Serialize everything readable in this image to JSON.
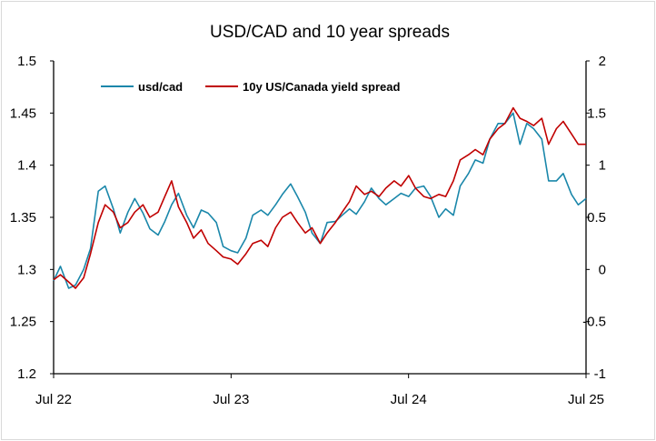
{
  "chart_data": {
    "type": "line",
    "title": "USD/CAD and 10 year spreads",
    "xlabel": "",
    "ylabel": "",
    "x_tick_labels": [
      "Jul 22",
      "Jul 23",
      "Jul 24",
      "Jul 25"
    ],
    "x_range": [
      "2022-07-01",
      "2025-07-01"
    ],
    "y_left": {
      "ticks": [
        "1.2",
        "1.25",
        "1.3",
        "1.35",
        "1.4",
        "1.45",
        "1.5"
      ],
      "ylim": [
        1.2,
        1.5
      ]
    },
    "y_right": {
      "ticks": [
        "-1",
        "-0.5",
        "0",
        "0.5",
        "1",
        "1.5",
        "2"
      ],
      "ylim": [
        -1,
        2
      ]
    },
    "grid": false,
    "legend_position": "top-left",
    "series": [
      {
        "name": "usd/cad",
        "axis": "left",
        "color": "#1a87aa",
        "points": [
          [
            "2022-07-01",
            1.289
          ],
          [
            "2022-07-15",
            1.303
          ],
          [
            "2022-08-01",
            1.282
          ],
          [
            "2022-08-15",
            1.285
          ],
          [
            "2022-09-01",
            1.3
          ],
          [
            "2022-09-15",
            1.32
          ],
          [
            "2022-10-01",
            1.375
          ],
          [
            "2022-10-15",
            1.38
          ],
          [
            "2022-11-01",
            1.358
          ],
          [
            "2022-11-15",
            1.335
          ],
          [
            "2022-12-01",
            1.355
          ],
          [
            "2022-12-15",
            1.368
          ],
          [
            "2023-01-01",
            1.354
          ],
          [
            "2023-01-15",
            1.339
          ],
          [
            "2023-02-01",
            1.333
          ],
          [
            "2023-02-15",
            1.346
          ],
          [
            "2023-03-01",
            1.362
          ],
          [
            "2023-03-15",
            1.373
          ],
          [
            "2023-04-01",
            1.352
          ],
          [
            "2023-04-15",
            1.34
          ],
          [
            "2023-05-01",
            1.357
          ],
          [
            "2023-05-15",
            1.354
          ],
          [
            "2023-06-01",
            1.345
          ],
          [
            "2023-06-15",
            1.322
          ],
          [
            "2023-07-01",
            1.318
          ],
          [
            "2023-07-15",
            1.316
          ],
          [
            "2023-08-01",
            1.33
          ],
          [
            "2023-08-15",
            1.352
          ],
          [
            "2023-09-01",
            1.357
          ],
          [
            "2023-09-15",
            1.352
          ],
          [
            "2023-10-01",
            1.362
          ],
          [
            "2023-10-15",
            1.372
          ],
          [
            "2023-11-01",
            1.382
          ],
          [
            "2023-11-15",
            1.37
          ],
          [
            "2023-12-01",
            1.355
          ],
          [
            "2023-12-15",
            1.335
          ],
          [
            "2024-01-01",
            1.325
          ],
          [
            "2024-01-15",
            1.345
          ],
          [
            "2024-02-01",
            1.346
          ],
          [
            "2024-02-15",
            1.352
          ],
          [
            "2024-03-01",
            1.358
          ],
          [
            "2024-03-15",
            1.353
          ],
          [
            "2024-04-01",
            1.365
          ],
          [
            "2024-04-15",
            1.378
          ],
          [
            "2024-05-01",
            1.368
          ],
          [
            "2024-05-15",
            1.362
          ],
          [
            "2024-06-01",
            1.368
          ],
          [
            "2024-06-15",
            1.373
          ],
          [
            "2024-07-01",
            1.37
          ],
          [
            "2024-07-15",
            1.378
          ],
          [
            "2024-08-01",
            1.38
          ],
          [
            "2024-08-15",
            1.37
          ],
          [
            "2024-09-01",
            1.35
          ],
          [
            "2024-09-15",
            1.358
          ],
          [
            "2024-10-01",
            1.352
          ],
          [
            "2024-10-15",
            1.38
          ],
          [
            "2024-11-01",
            1.392
          ],
          [
            "2024-11-15",
            1.405
          ],
          [
            "2024-12-01",
            1.402
          ],
          [
            "2024-12-15",
            1.425
          ],
          [
            "2025-01-01",
            1.44
          ],
          [
            "2025-01-15",
            1.44
          ],
          [
            "2025-02-01",
            1.45
          ],
          [
            "2025-02-15",
            1.42
          ],
          [
            "2025-03-01",
            1.44
          ],
          [
            "2025-03-15",
            1.435
          ],
          [
            "2025-04-01",
            1.425
          ],
          [
            "2025-04-15",
            1.385
          ],
          [
            "2025-05-01",
            1.385
          ],
          [
            "2025-05-15",
            1.392
          ],
          [
            "2025-06-01",
            1.372
          ],
          [
            "2025-06-15",
            1.362
          ],
          [
            "2025-07-01",
            1.368
          ]
        ]
      },
      {
        "name": "10y US/Canada yield spread",
        "axis": "right",
        "color": "#c00000",
        "points": [
          [
            "2022-07-01",
            -0.1
          ],
          [
            "2022-07-15",
            -0.05
          ],
          [
            "2022-08-01",
            -0.12
          ],
          [
            "2022-08-15",
            -0.18
          ],
          [
            "2022-09-01",
            -0.08
          ],
          [
            "2022-09-15",
            0.15
          ],
          [
            "2022-10-01",
            0.45
          ],
          [
            "2022-10-15",
            0.62
          ],
          [
            "2022-11-01",
            0.55
          ],
          [
            "2022-11-15",
            0.4
          ],
          [
            "2022-12-01",
            0.45
          ],
          [
            "2022-12-15",
            0.55
          ],
          [
            "2023-01-01",
            0.62
          ],
          [
            "2023-01-15",
            0.5
          ],
          [
            "2023-02-01",
            0.55
          ],
          [
            "2023-02-15",
            0.7
          ],
          [
            "2023-03-01",
            0.85
          ],
          [
            "2023-03-15",
            0.6
          ],
          [
            "2023-04-01",
            0.45
          ],
          [
            "2023-04-15",
            0.3
          ],
          [
            "2023-05-01",
            0.38
          ],
          [
            "2023-05-15",
            0.25
          ],
          [
            "2023-06-01",
            0.18
          ],
          [
            "2023-06-15",
            0.12
          ],
          [
            "2023-07-01",
            0.1
          ],
          [
            "2023-07-15",
            0.05
          ],
          [
            "2023-08-01",
            0.15
          ],
          [
            "2023-08-15",
            0.25
          ],
          [
            "2023-09-01",
            0.28
          ],
          [
            "2023-09-15",
            0.22
          ],
          [
            "2023-10-01",
            0.4
          ],
          [
            "2023-10-15",
            0.5
          ],
          [
            "2023-11-01",
            0.55
          ],
          [
            "2023-11-15",
            0.45
          ],
          [
            "2023-12-01",
            0.35
          ],
          [
            "2023-12-15",
            0.4
          ],
          [
            "2024-01-01",
            0.25
          ],
          [
            "2024-01-15",
            0.35
          ],
          [
            "2024-02-01",
            0.45
          ],
          [
            "2024-02-15",
            0.55
          ],
          [
            "2024-03-01",
            0.65
          ],
          [
            "2024-03-15",
            0.8
          ],
          [
            "2024-04-01",
            0.72
          ],
          [
            "2024-04-15",
            0.75
          ],
          [
            "2024-05-01",
            0.7
          ],
          [
            "2024-05-15",
            0.78
          ],
          [
            "2024-06-01",
            0.85
          ],
          [
            "2024-06-15",
            0.8
          ],
          [
            "2024-07-01",
            0.9
          ],
          [
            "2024-07-15",
            0.78
          ],
          [
            "2024-08-01",
            0.7
          ],
          [
            "2024-08-15",
            0.68
          ],
          [
            "2024-09-01",
            0.72
          ],
          [
            "2024-09-15",
            0.7
          ],
          [
            "2024-10-01",
            0.85
          ],
          [
            "2024-10-15",
            1.05
          ],
          [
            "2024-11-01",
            1.1
          ],
          [
            "2024-11-15",
            1.15
          ],
          [
            "2024-12-01",
            1.1
          ],
          [
            "2024-12-15",
            1.25
          ],
          [
            "2025-01-01",
            1.35
          ],
          [
            "2025-01-15",
            1.4
          ],
          [
            "2025-02-01",
            1.55
          ],
          [
            "2025-02-15",
            1.45
          ],
          [
            "2025-03-01",
            1.42
          ],
          [
            "2025-03-15",
            1.38
          ],
          [
            "2025-04-01",
            1.45
          ],
          [
            "2025-04-15",
            1.2
          ],
          [
            "2025-05-01",
            1.35
          ],
          [
            "2025-05-15",
            1.42
          ],
          [
            "2025-06-01",
            1.3
          ],
          [
            "2025-06-15",
            1.2
          ],
          [
            "2025-07-01",
            1.2
          ]
        ]
      }
    ]
  }
}
